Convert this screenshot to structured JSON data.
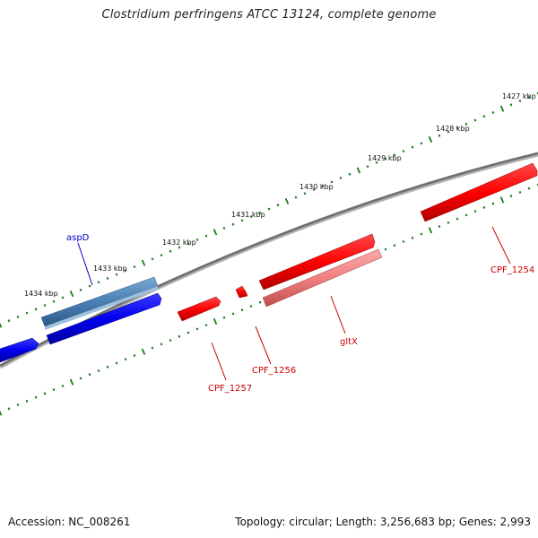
{
  "title": "Clostridium perfringens ATCC 13124, complete genome",
  "footer": {
    "accession_label": "Accession:",
    "accession": "NC_008261",
    "topology_label": "Topology:",
    "topology": "circular;",
    "length_label": "Length:",
    "length": "3,256,683 bp;",
    "genes_label": "Genes:",
    "genes": "2,993"
  },
  "colors": {
    "backbone": "#7a7a7a",
    "ticks": "#1a7a1a",
    "forward_gene": "#ff0000",
    "reverse_gene": "#0000ee",
    "rna_forward": "#f08080",
    "rna_reverse": "#4a80b4",
    "label_red": "#cc0000",
    "label_blue": "#0000cc"
  },
  "chart_data": {
    "type": "genome-map",
    "kbp_markers": [
      "1427 kbp",
      "1428 kbp",
      "1429 kbp",
      "1430 kbp",
      "1431 kbp",
      "1432 kbp",
      "1433 kbp",
      "1434 kbp"
    ],
    "features": [
      {
        "label": "aspD",
        "strand": "reverse",
        "track": "rna",
        "color": "#4a80b4"
      },
      {
        "label": "",
        "strand": "reverse",
        "track": "cds",
        "color": "#0000ee"
      },
      {
        "label": "",
        "strand": "reverse",
        "track": "cds",
        "color": "#0000ee"
      },
      {
        "label": "CPF_1257",
        "strand": "forward",
        "track": "cds",
        "color": "#ff0000"
      },
      {
        "label": "CPF_1256",
        "strand": "forward",
        "track": "cds",
        "color": "#ff0000"
      },
      {
        "label": "",
        "strand": "forward",
        "track": "cds",
        "color": "#ff0000"
      },
      {
        "label": "gltX",
        "strand": "forward",
        "track": "rna",
        "color": "#f08080"
      },
      {
        "label": "CPF_1254",
        "strand": "forward",
        "track": "cds",
        "color": "#ff0000"
      }
    ]
  }
}
